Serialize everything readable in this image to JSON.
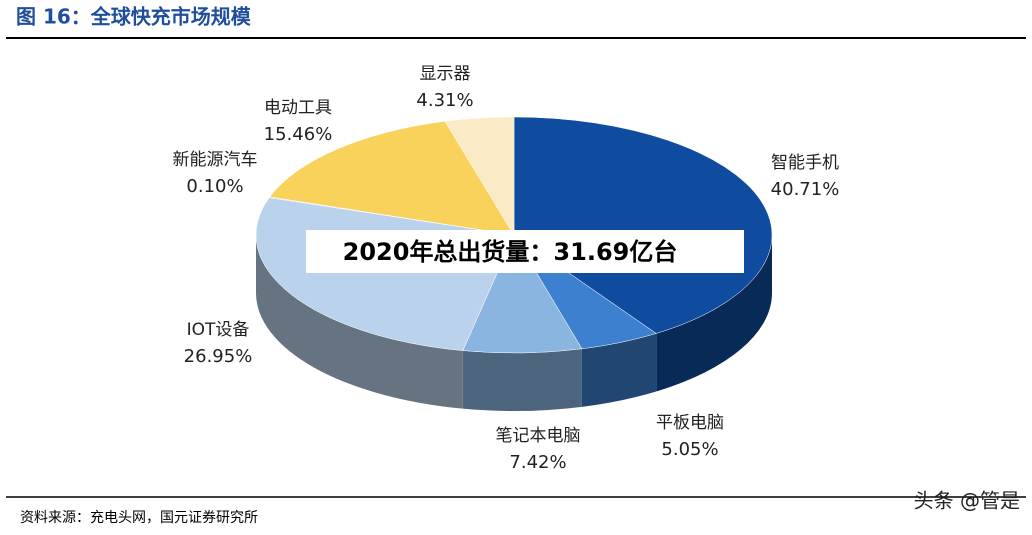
{
  "chart_data": {
    "type": "pie3d",
    "title": "图 16：全球快充市场规模",
    "annotation": "2020年总出货量：31.69亿台",
    "source": "资料来源：充电头网，国元证券研究所",
    "watermark": "头条 @管是",
    "categories": [
      "智能手机",
      "平板电脑",
      "笔记本电脑",
      "IOT设备",
      "新能源汽车",
      "电动工具",
      "显示器"
    ],
    "values": [
      40.71,
      5.05,
      7.42,
      26.95,
      0.1,
      15.46,
      4.31
    ],
    "value_labels": [
      "40.71%",
      "5.05%",
      "7.42%",
      "26.95%",
      "0.10%",
      "15.46%",
      "4.31%"
    ],
    "colors": [
      "#0f4c9f",
      "#3c80cf",
      "#8bb5e1",
      "#bad2eb",
      "#9fc0e4",
      "#f9d25c",
      "#fbeac6"
    ]
  }
}
